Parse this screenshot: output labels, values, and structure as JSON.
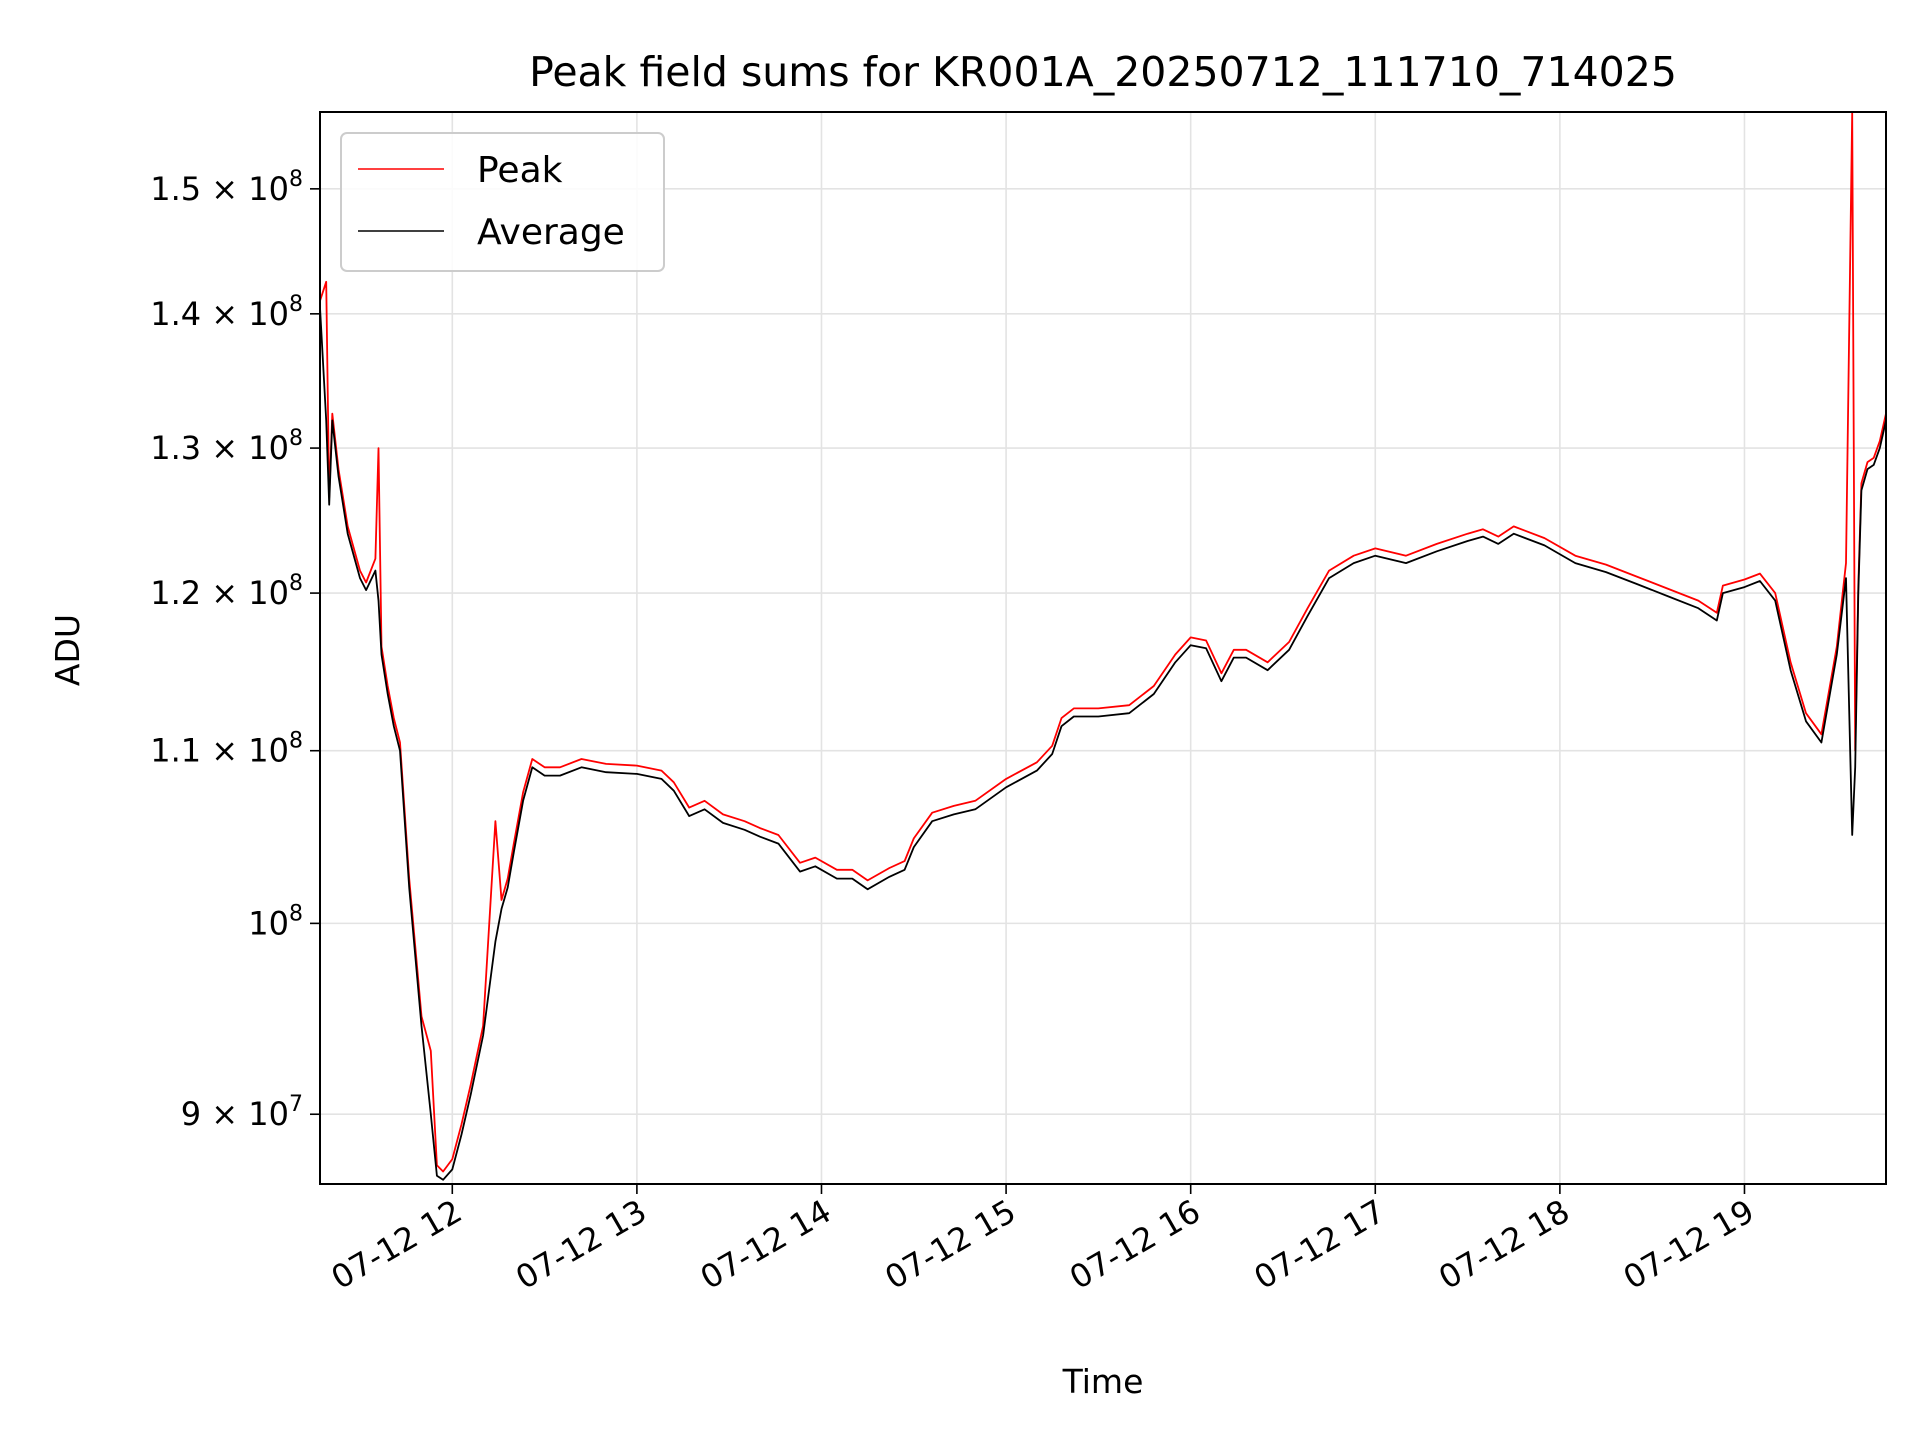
{
  "chart_data": {
    "type": "line",
    "title": "Peak field sums for KR001A_20250712_111710_714025",
    "xlabel": "Time",
    "ylabel": "ADU",
    "y_scale": "log",
    "xlim": [
      "2025-07-12 11:17",
      "2025-07-12 19:46"
    ],
    "ylim": [
      86600000,
      156500000
    ],
    "grid": true,
    "legend_placement": "upper-left",
    "x_ticks": [
      {
        "t": "2025-07-12 12:00",
        "label": "07-12 12"
      },
      {
        "t": "2025-07-12 13:00",
        "label": "07-12 13"
      },
      {
        "t": "2025-07-12 14:00",
        "label": "07-12 14"
      },
      {
        "t": "2025-07-12 15:00",
        "label": "07-12 15"
      },
      {
        "t": "2025-07-12 16:00",
        "label": "07-12 16"
      },
      {
        "t": "2025-07-12 17:00",
        "label": "07-12 17"
      },
      {
        "t": "2025-07-12 18:00",
        "label": "07-12 18"
      },
      {
        "t": "2025-07-12 19:00",
        "label": "07-12 19"
      }
    ],
    "y_ticks": [
      {
        "value": 90000000,
        "mantissa": "9",
        "base": "10",
        "exponent": "7"
      },
      {
        "value": 100000000,
        "mantissa": "",
        "base": "10",
        "exponent": "8"
      },
      {
        "value": 110000000,
        "mantissa": "1.1",
        "base": "10",
        "exponent": "8"
      },
      {
        "value": 120000000,
        "mantissa": "1.2",
        "base": "10",
        "exponent": "8"
      },
      {
        "value": 130000000,
        "mantissa": "1.3",
        "base": "10",
        "exponent": "8"
      },
      {
        "value": 140000000,
        "mantissa": "1.4",
        "base": "10",
        "exponent": "8"
      },
      {
        "value": 150000000,
        "mantissa": "1.5",
        "base": "10",
        "exponent": "8"
      }
    ],
    "series": [
      {
        "name": "Average",
        "color": "#000000",
        "time": [
          "2025-07-12 11:17",
          "2025-07-12 11:19",
          "2025-07-12 11:20",
          "2025-07-12 11:21",
          "2025-07-12 11:23",
          "2025-07-12 11:26",
          "2025-07-12 11:30",
          "2025-07-12 11:32",
          "2025-07-12 11:35",
          "2025-07-12 11:36",
          "2025-07-12 11:37",
          "2025-07-12 11:39",
          "2025-07-12 11:41",
          "2025-07-12 11:43",
          "2025-07-12 11:46",
          "2025-07-12 11:50",
          "2025-07-12 11:53",
          "2025-07-12 11:55",
          "2025-07-12 11:57",
          "2025-07-12 12:00",
          "2025-07-12 12:03",
          "2025-07-12 12:06",
          "2025-07-12 12:10",
          "2025-07-12 12:14",
          "2025-07-12 12:16",
          "2025-07-12 12:18",
          "2025-07-12 12:20",
          "2025-07-12 12:23",
          "2025-07-12 12:26",
          "2025-07-12 12:30",
          "2025-07-12 12:35",
          "2025-07-12 12:42",
          "2025-07-12 12:50",
          "2025-07-12 13:00",
          "2025-07-12 13:08",
          "2025-07-12 13:12",
          "2025-07-12 13:17",
          "2025-07-12 13:22",
          "2025-07-12 13:28",
          "2025-07-12 13:35",
          "2025-07-12 13:40",
          "2025-07-12 13:46",
          "2025-07-12 13:53",
          "2025-07-12 13:58",
          "2025-07-12 14:05",
          "2025-07-12 14:10",
          "2025-07-12 14:15",
          "2025-07-12 14:22",
          "2025-07-12 14:27",
          "2025-07-12 14:30",
          "2025-07-12 14:36",
          "2025-07-12 14:43",
          "2025-07-12 14:50",
          "2025-07-12 15:00",
          "2025-07-12 15:10",
          "2025-07-12 15:15",
          "2025-07-12 15:18",
          "2025-07-12 15:22",
          "2025-07-12 15:30",
          "2025-07-12 15:40",
          "2025-07-12 15:48",
          "2025-07-12 15:55",
          "2025-07-12 16:00",
          "2025-07-12 16:05",
          "2025-07-12 16:10",
          "2025-07-12 16:14",
          "2025-07-12 16:18",
          "2025-07-12 16:25",
          "2025-07-12 16:32",
          "2025-07-12 16:38",
          "2025-07-12 16:45",
          "2025-07-12 16:53",
          "2025-07-12 17:00",
          "2025-07-12 17:10",
          "2025-07-12 17:20",
          "2025-07-12 17:30",
          "2025-07-12 17:35",
          "2025-07-12 17:40",
          "2025-07-12 17:45",
          "2025-07-12 17:55",
          "2025-07-12 18:05",
          "2025-07-12 18:15",
          "2025-07-12 18:25",
          "2025-07-12 18:35",
          "2025-07-12 18:45",
          "2025-07-12 18:51",
          "2025-07-12 18:53",
          "2025-07-12 19:00",
          "2025-07-12 19:05",
          "2025-07-12 19:10",
          "2025-07-12 19:15",
          "2025-07-12 19:20",
          "2025-07-12 19:25",
          "2025-07-12 19:30",
          "2025-07-12 19:33",
          "2025-07-12 19:35",
          "2025-07-12 19:36",
          "2025-07-12 19:37",
          "2025-07-12 19:38",
          "2025-07-12 19:40",
          "2025-07-12 19:42",
          "2025-07-12 19:44",
          "2025-07-12 19:46"
        ],
        "values": [
          140500000,
          132000000,
          126000000,
          132000000,
          128000000,
          124000000,
          121000000,
          120200000,
          121500000,
          119500000,
          116000000,
          113500000,
          111500000,
          110000000,
          102000000,
          94500000,
          90000000,
          87000000,
          86800000,
          87300000,
          89000000,
          91000000,
          94000000,
          99000000,
          100800000,
          102000000,
          104000000,
          107000000,
          109000000,
          108500000,
          108500000,
          109000000,
          108700000,
          108600000,
          108300000,
          107600000,
          106100000,
          106500000,
          105700000,
          105300000,
          104900000,
          104500000,
          102900000,
          103200000,
          102500000,
          102500000,
          101900000,
          102600000,
          103000000,
          104300000,
          105800000,
          106200000,
          106500000,
          107800000,
          108800000,
          109800000,
          111500000,
          112100000,
          112100000,
          112300000,
          113500000,
          115500000,
          116600000,
          116400000,
          114300000,
          115800000,
          115800000,
          115000000,
          116300000,
          118500000,
          121000000,
          122000000,
          122500000,
          122000000,
          122800000,
          123500000,
          123800000,
          123300000,
          124000000,
          123200000,
          122000000,
          121400000,
          120600000,
          119800000,
          119000000,
          118200000,
          120000000,
          120400000,
          120800000,
          119500000,
          115000000,
          111800000,
          110500000,
          116000000,
          121000000,
          105000000,
          109000000,
          120000000,
          127000000,
          128500000,
          128800000,
          130000000,
          132000000
        ]
      },
      {
        "name": "Peak",
        "color": "#ff0000",
        "time": [
          "2025-07-12 11:17",
          "2025-07-12 11:19",
          "2025-07-12 11:20",
          "2025-07-12 11:21",
          "2025-07-12 11:23",
          "2025-07-12 11:26",
          "2025-07-12 11:30",
          "2025-07-12 11:32",
          "2025-07-12 11:35",
          "2025-07-12 11:36",
          "2025-07-12 11:37",
          "2025-07-12 11:39",
          "2025-07-12 11:41",
          "2025-07-12 11:43",
          "2025-07-12 11:46",
          "2025-07-12 11:50",
          "2025-07-12 11:53",
          "2025-07-12 11:55",
          "2025-07-12 11:57",
          "2025-07-12 12:00",
          "2025-07-12 12:03",
          "2025-07-12 12:06",
          "2025-07-12 12:10",
          "2025-07-12 12:14",
          "2025-07-12 12:16",
          "2025-07-12 12:18",
          "2025-07-12 12:20",
          "2025-07-12 12:23",
          "2025-07-12 12:26",
          "2025-07-12 12:30",
          "2025-07-12 12:35",
          "2025-07-12 12:42",
          "2025-07-12 12:50",
          "2025-07-12 13:00",
          "2025-07-12 13:08",
          "2025-07-12 13:12",
          "2025-07-12 13:17",
          "2025-07-12 13:22",
          "2025-07-12 13:28",
          "2025-07-12 13:35",
          "2025-07-12 13:40",
          "2025-07-12 13:46",
          "2025-07-12 13:53",
          "2025-07-12 13:58",
          "2025-07-12 14:05",
          "2025-07-12 14:10",
          "2025-07-12 14:15",
          "2025-07-12 14:22",
          "2025-07-12 14:27",
          "2025-07-12 14:30",
          "2025-07-12 14:36",
          "2025-07-12 14:43",
          "2025-07-12 14:50",
          "2025-07-12 15:00",
          "2025-07-12 15:10",
          "2025-07-12 15:15",
          "2025-07-12 15:18",
          "2025-07-12 15:22",
          "2025-07-12 15:30",
          "2025-07-12 15:40",
          "2025-07-12 15:48",
          "2025-07-12 15:55",
          "2025-07-12 16:00",
          "2025-07-12 16:05",
          "2025-07-12 16:10",
          "2025-07-12 16:14",
          "2025-07-12 16:18",
          "2025-07-12 16:25",
          "2025-07-12 16:32",
          "2025-07-12 16:38",
          "2025-07-12 16:45",
          "2025-07-12 16:53",
          "2025-07-12 17:00",
          "2025-07-12 17:10",
          "2025-07-12 17:20",
          "2025-07-12 17:30",
          "2025-07-12 17:35",
          "2025-07-12 17:40",
          "2025-07-12 17:45",
          "2025-07-12 17:55",
          "2025-07-12 18:05",
          "2025-07-12 18:15",
          "2025-07-12 18:25",
          "2025-07-12 18:35",
          "2025-07-12 18:45",
          "2025-07-12 18:51",
          "2025-07-12 18:53",
          "2025-07-12 19:00",
          "2025-07-12 19:05",
          "2025-07-12 19:10",
          "2025-07-12 19:15",
          "2025-07-12 19:20",
          "2025-07-12 19:25",
          "2025-07-12 19:30",
          "2025-07-12 19:33",
          "2025-07-12 19:35",
          "2025-07-12 19:36",
          "2025-07-12 19:37",
          "2025-07-12 19:38",
          "2025-07-12 19:40",
          "2025-07-12 19:42",
          "2025-07-12 19:44",
          "2025-07-12 19:46"
        ],
        "values": [
          141000000,
          142500000,
          126500000,
          132500000,
          128500000,
          124500000,
          121500000,
          120700000,
          122300000,
          130000000,
          116500000,
          114000000,
          112000000,
          110500000,
          102500000,
          95000000,
          93200000,
          87500000,
          87200000,
          87800000,
          89500000,
          91500000,
          94500000,
          105800000,
          101300000,
          102500000,
          104500000,
          107500000,
          109500000,
          109000000,
          109000000,
          109500000,
          109200000,
          109100000,
          108800000,
          108100000,
          106600000,
          107000000,
          106200000,
          105800000,
          105400000,
          105000000,
          103400000,
          103700000,
          103000000,
          103000000,
          102400000,
          103100000,
          103500000,
          104800000,
          106300000,
          106700000,
          107000000,
          108300000,
          109300000,
          110300000,
          112000000,
          112600000,
          112600000,
          112800000,
          114000000,
          116000000,
          117100000,
          116900000,
          114800000,
          116300000,
          116300000,
          115500000,
          116800000,
          119000000,
          121500000,
          122500000,
          123000000,
          122500000,
          123300000,
          124000000,
          124300000,
          123800000,
          124500000,
          123700000,
          122500000,
          121900000,
          121100000,
          120300000,
          119500000,
          118700000,
          120500000,
          120900000,
          121300000,
          120000000,
          115500000,
          112300000,
          111000000,
          116500000,
          122000000,
          156500000,
          110000000,
          120500000,
          127500000,
          129000000,
          129300000,
          130500000,
          132500000
        ]
      }
    ]
  }
}
